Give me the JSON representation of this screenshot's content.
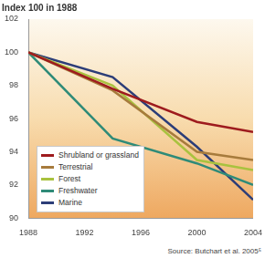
{
  "chart_data": {
    "type": "line",
    "title": "Index 100 in 1988",
    "source": "Source: Butchart et al. 2005⁵",
    "x": [
      1988,
      1994,
      2000,
      2004
    ],
    "series": [
      {
        "name": "Shrubland or grassland",
        "color": "#9e1b1e",
        "values": [
          100,
          97.8,
          95.8,
          95.2
        ]
      },
      {
        "name": "Terrestrial",
        "color": "#a77b3c",
        "values": [
          100,
          97.7,
          94.0,
          93.5
        ]
      },
      {
        "name": "Forest",
        "color": "#a9c23f",
        "values": [
          100,
          98.0,
          93.5,
          92.9
        ]
      },
      {
        "name": "Freshwater",
        "color": "#2f8b78",
        "values": [
          100,
          94.8,
          93.3,
          92.0
        ]
      },
      {
        "name": "Marine",
        "color": "#2c3d78",
        "values": [
          100,
          98.5,
          94.3,
          91.1
        ]
      }
    ],
    "xlim": [
      1988,
      2004
    ],
    "xticks": [
      1988,
      1992,
      1996,
      2000,
      2004
    ],
    "ylim": [
      90,
      102
    ],
    "yticks": [
      90,
      92,
      94,
      96,
      98,
      100,
      102
    ],
    "grid": false,
    "legend": "lower left",
    "marker": "none",
    "line_style": "solid"
  }
}
